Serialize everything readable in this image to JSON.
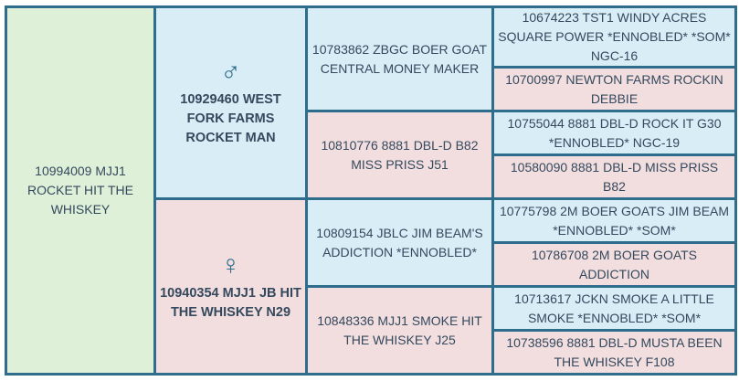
{
  "subject": "10994009 MJJ1 ROCKET HIT THE WHISKEY",
  "sire": {
    "name": "10929460 WEST FORK FARMS ROCKET MAN",
    "icon": "male-symbol-icon",
    "symbol": "♂"
  },
  "dam": {
    "name": "10940354 MJJ1 JB HIT THE WHISKEY N29",
    "icon": "female-symbol-icon",
    "symbol": "♀"
  },
  "grandparents": [
    "10783862 ZBGC BOER GOAT CENTRAL MONEY MAKER",
    "10810776 8881 DBL-D B82 MISS PRISS J51",
    "10809154 JBLC JIM BEAM'S ADDICTION *ENNOBLED*",
    "10848336 MJJ1 SMOKE HIT THE WHISKEY J25"
  ],
  "great_grandparents": [
    "10674223 TST1 WINDY ACRES SQUARE POWER *ENNOBLED* *SOM* NGC-16",
    "10700997 NEWTON FARMS ROCKIN DEBBIE",
    "10755044 8881 DBL-D ROCK IT G30 *ENNOBLED* NGC-19",
    "10580090 8881 DBL-D MISS PRISS B82",
    "10775798 2M BOER GOATS JIM BEAM *ENNOBLED* *SOM*",
    "10786708 2M BOER GOATS ADDICTION",
    "10713617 JCKN SMOKE A LITTLE SMOKE *ENNOBLED* *SOM*",
    "10738596 8881 DBL-D MUSTA BEEN THE WHISKEY F108"
  ],
  "colors": {
    "border": "#2f6d8c",
    "subject": "#dff0d8",
    "male": "#d9edf7",
    "female": "#f2dede",
    "text": "#34495e"
  }
}
